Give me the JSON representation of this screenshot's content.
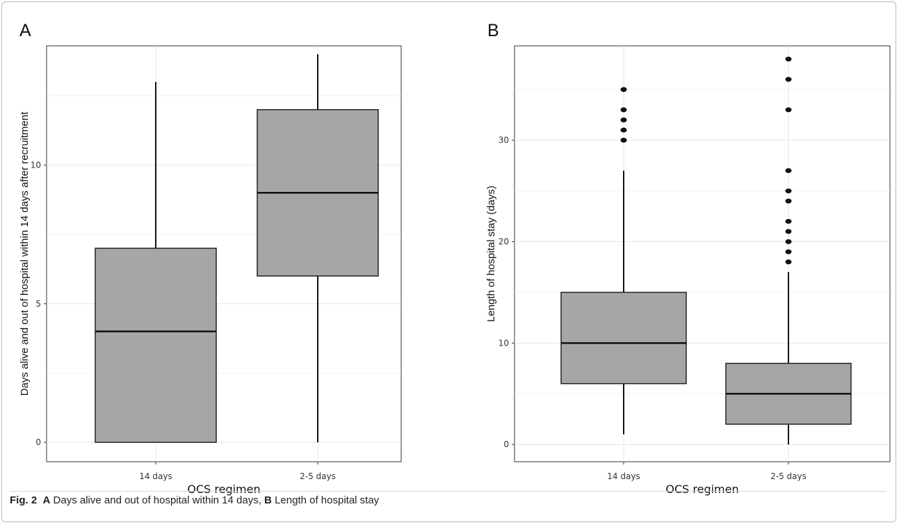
{
  "caption": {
    "fig_label": "Fig. 2",
    "part_a_letter": "A",
    "part_a_text": "Days alive and out of hospital within 14 days,",
    "part_b_letter": "B",
    "part_b_text": "Length of hospital stay"
  },
  "chart_data": [
    {
      "type": "box",
      "panel": "A",
      "title": "",
      "xlabel": "OCS regimen",
      "ylabel": "Days alive and out of hospital within 14 days after recruitment",
      "categories": [
        "14 days",
        "2-5 days"
      ],
      "ylim": [
        -0.7,
        14.3
      ],
      "yticks": [
        0,
        5,
        10
      ],
      "grid": true,
      "boxes": [
        {
          "category": "14 days",
          "whisker_low": 0,
          "q1": 0,
          "median": 4,
          "q3": 7,
          "whisker_high": 13,
          "outliers": []
        },
        {
          "category": "2-5 days",
          "whisker_low": 0,
          "q1": 6,
          "median": 9,
          "q3": 12,
          "whisker_high": 14,
          "outliers": []
        }
      ],
      "box_fill": "#a6a6a6"
    },
    {
      "type": "box",
      "panel": "B",
      "title": "",
      "xlabel": "OCS regimen",
      "ylabel": "Length of hospital stay (days)",
      "categories": [
        "14 days",
        "2-5 days"
      ],
      "ylim": [
        -1.7,
        39.3
      ],
      "yticks": [
        0,
        10,
        20,
        30
      ],
      "grid": true,
      "boxes": [
        {
          "category": "14 days",
          "whisker_low": 1,
          "q1": 6,
          "median": 10,
          "q3": 15,
          "whisker_high": 27,
          "outliers": [
            30,
            31,
            32,
            33,
            35
          ]
        },
        {
          "category": "2-5 days",
          "whisker_low": 0,
          "q1": 2,
          "median": 5,
          "q3": 8,
          "whisker_high": 17,
          "outliers": [
            18,
            19,
            20,
            21,
            22,
            24,
            25,
            27,
            33,
            36,
            38
          ]
        }
      ],
      "box_fill": "#a6a6a6"
    }
  ]
}
